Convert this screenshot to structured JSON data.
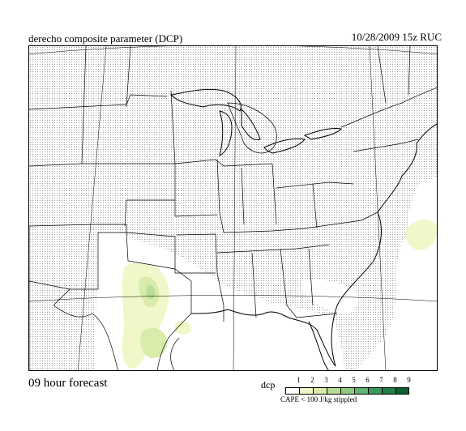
{
  "header": {
    "title": "derecho composite parameter (DCP)",
    "datetime": "10/28/2009  15z  RUC"
  },
  "footer": {
    "forecast": "09 hour forecast"
  },
  "legend": {
    "label": "dcp",
    "values": [
      "1",
      "2",
      "3",
      "4",
      "5",
      "6",
      "7",
      "8",
      "9"
    ],
    "colors": [
      "#ffffff",
      "#f0f7c8",
      "#d8ecac",
      "#b8dd96",
      "#8fca83",
      "#5fb46f",
      "#3a9a5b",
      "#1f7f45",
      "#0e5f31"
    ],
    "note": "CAPE < 100 J/kg stippled"
  },
  "map": {
    "stipple_color": "#a6a6a6",
    "line_color": "#000000"
  }
}
